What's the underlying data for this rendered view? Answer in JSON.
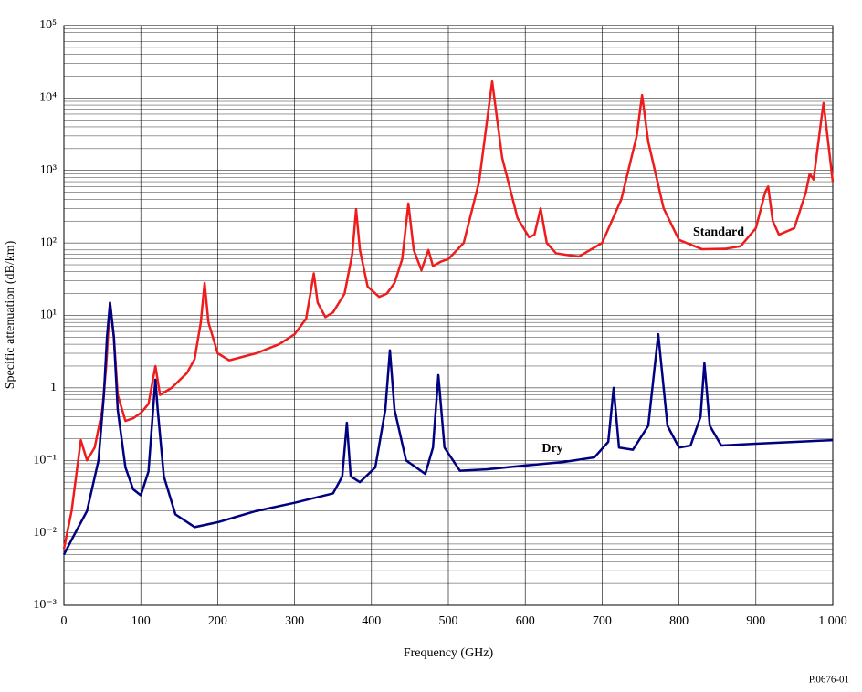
{
  "chart_data": {
    "type": "line",
    "x_label": "Frequency (GHz)",
    "y_label": "Specific attenuation (dB/km)",
    "source_note": "P.0676-01",
    "annotations": [
      "Standard",
      "Dry"
    ],
    "log_y": true,
    "grid": true,
    "minor_grid": true,
    "xlim": [
      0,
      1000
    ],
    "xticks": [
      0,
      100,
      200,
      300,
      400,
      500,
      600,
      700,
      800,
      900,
      {
        "value": 1000,
        "label": "1 000"
      }
    ],
    "ylim": [
      0.001,
      100000
    ],
    "yticks": [
      {
        "value": 0.001,
        "label": "10⁻³"
      },
      {
        "value": 0.01,
        "label": "10⁻²"
      },
      {
        "value": 0.1,
        "label": "10⁻¹"
      },
      1,
      {
        "value": 10,
        "label": "10¹"
      },
      {
        "value": 100,
        "label": "10²"
      },
      {
        "value": 1000,
        "label": "10³"
      },
      {
        "value": 10000,
        "label": "10⁴"
      },
      {
        "value": 100000,
        "label": "10⁵"
      }
    ],
    "series": [
      {
        "name": "Standard",
        "color": "#ee1c1c",
        "x": [
          0,
          10,
          22,
          30,
          40,
          50,
          55,
          60,
          65,
          70,
          80,
          90,
          100,
          110,
          119,
          125,
          140,
          160,
          170,
          178,
          183,
          188,
          200,
          215,
          250,
          280,
          300,
          315,
          325,
          330,
          340,
          350,
          365,
          375,
          380,
          385,
          395,
          410,
          420,
          430,
          440,
          448,
          455,
          465,
          474,
          480,
          490,
          500,
          520,
          540,
          557,
          570,
          590,
          605,
          612,
          620,
          628,
          640,
          655,
          670,
          700,
          725,
          745,
          752,
          760,
          780,
          800,
          830,
          860,
          880,
          900,
          912,
          916,
          922,
          930,
          950,
          965,
          970,
          975,
          985,
          988,
          995,
          1000
        ],
        "values": [
          0.006,
          0.02,
          0.19,
          0.1,
          0.15,
          0.5,
          2,
          15,
          5,
          0.8,
          0.35,
          0.38,
          0.45,
          0.6,
          2,
          0.8,
          1.0,
          1.6,
          2.5,
          8,
          28,
          8,
          3,
          2.4,
          3,
          4,
          5.5,
          9,
          38,
          15,
          9.5,
          11,
          20,
          70,
          290,
          80,
          25,
          18,
          20,
          28,
          60,
          350,
          80,
          42,
          80,
          48,
          55,
          60,
          100,
          700,
          17000,
          1500,
          220,
          120,
          130,
          300,
          100,
          72,
          68,
          65,
          100,
          400,
          3000,
          11000,
          2500,
          300,
          110,
          82,
          83,
          90,
          160,
          500,
          600,
          200,
          130,
          160,
          500,
          900,
          750,
          5000,
          8500,
          2000,
          700
        ]
      },
      {
        "name": "Dry",
        "color": "#000080",
        "x": [
          0,
          10,
          30,
          45,
          52,
          56,
          60,
          65,
          70,
          80,
          90,
          100,
          110,
          116,
          119,
          122,
          130,
          145,
          170,
          200,
          250,
          300,
          350,
          362,
          368,
          373,
          385,
          405,
          418,
          424,
          430,
          445,
          470,
          480,
          487,
          495,
          515,
          550,
          600,
          650,
          690,
          708,
          715,
          722,
          740,
          760,
          773,
          785,
          800,
          815,
          828,
          833,
          840,
          855,
          900,
          1000
        ],
        "values": [
          0.005,
          0.008,
          0.02,
          0.1,
          0.8,
          5,
          15,
          5,
          0.5,
          0.08,
          0.04,
          0.033,
          0.07,
          0.5,
          1.3,
          0.5,
          0.06,
          0.018,
          0.012,
          0.014,
          0.02,
          0.026,
          0.035,
          0.06,
          0.33,
          0.06,
          0.05,
          0.08,
          0.5,
          3.3,
          0.5,
          0.1,
          0.065,
          0.15,
          1.5,
          0.15,
          0.072,
          0.075,
          0.085,
          0.095,
          0.11,
          0.18,
          1.0,
          0.15,
          0.14,
          0.3,
          5.5,
          0.3,
          0.15,
          0.16,
          0.4,
          2.2,
          0.3,
          0.16,
          0.17,
          0.19
        ]
      }
    ]
  }
}
